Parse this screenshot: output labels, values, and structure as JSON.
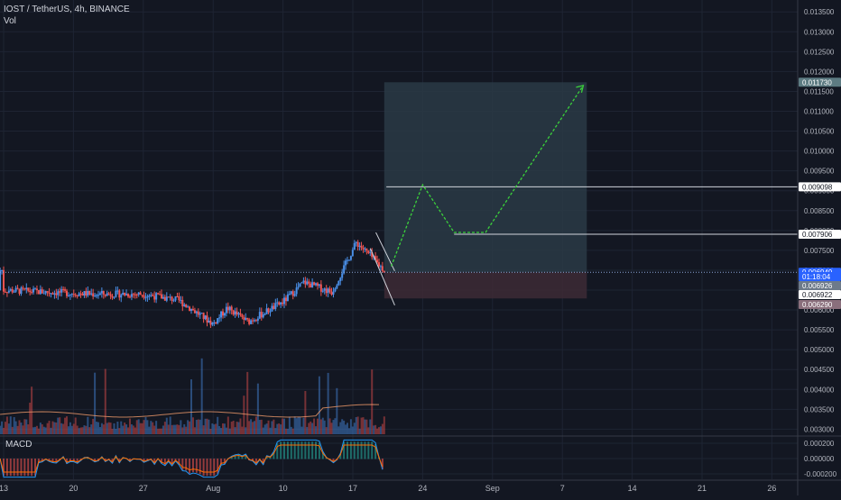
{
  "header": {
    "title": "IOST / TetherUS, 4h, BINANCE",
    "volume_label": "Vol"
  },
  "indicator": {
    "label": "MACD"
  },
  "chart_data": {
    "type": "candlestick",
    "symbol": "IOST / TetherUS",
    "interval": "4h",
    "exchange": "BINANCE",
    "x_tick_labels": [
      "13",
      "20",
      "27",
      "Aug",
      "10",
      "17",
      "24",
      "Sep",
      "7",
      "14",
      "21",
      "26"
    ],
    "price_axis": {
      "ticks": [
        "0.013500",
        "0.013000",
        "0.012500",
        "0.012000",
        "0.011500",
        "0.011000",
        "0.010500",
        "0.010000",
        "0.009500",
        "0.009000",
        "0.008500",
        "0.008000",
        "0.007500",
        "0.007000",
        "0.006500",
        "0.006000",
        "0.005500",
        "0.005000",
        "0.004500",
        "0.004000",
        "0.003500",
        "0.003000"
      ],
      "ylim": [
        0.00285,
        0.0138
      ]
    },
    "macd_axis": {
      "ticks": [
        "0.000200",
        "0.000000",
        "-0.000200"
      ],
      "ylim": [
        -0.00027,
        0.00027
      ]
    },
    "price_labels": [
      {
        "value": "0.011730",
        "style": "target"
      },
      {
        "value": "0.009098",
        "style": "level"
      },
      {
        "value": "0.007906",
        "style": "level"
      },
      {
        "value": "0.006949",
        "style": "last"
      },
      {
        "value": "01:18:04",
        "style": "countdown"
      },
      {
        "value": "0.006926",
        "style": "grey"
      },
      {
        "value": "0.006922",
        "style": "level"
      },
      {
        "value": "0.006290",
        "style": "stop"
      }
    ],
    "trade_setup": {
      "entry": 0.006949,
      "target": 0.01173,
      "stop": 0.00629,
      "levels": [
        0.009098,
        0.007906
      ]
    },
    "projection_path": [
      {
        "x_tick": 5.55,
        "price": 0.0071
      },
      {
        "x_tick": 6.0,
        "price": 0.00915
      },
      {
        "x_tick": 6.45,
        "price": 0.00795
      },
      {
        "x_tick": 6.9,
        "price": 0.00795
      },
      {
        "x_tick": 8.3,
        "price": 0.01165
      }
    ],
    "colors": {
      "background": "#131722",
      "grid": "#1e2433",
      "up": "#4a8fe7",
      "down": "#ef5350",
      "projection": "#3bd13b",
      "target_zone": "#2a3a45",
      "stop_zone": "#3d2a35",
      "axis_text": "#b2b5be"
    }
  }
}
